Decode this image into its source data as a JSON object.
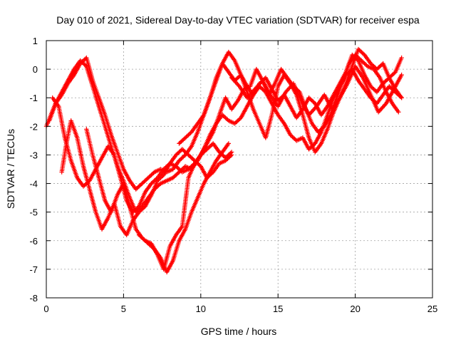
{
  "chart_data": {
    "type": "scatter",
    "title": "Day 010 of 2021, Sidereal Day-to-day VTEC variation (SDTVAR) for receiver espa",
    "xlabel": "GPS time / hours",
    "ylabel": "SDTVAR / TECUs",
    "xlim": [
      0,
      25
    ],
    "ylim": [
      -8,
      1
    ],
    "xticks": [
      0,
      5,
      10,
      15,
      20,
      25
    ],
    "yticks": [
      -8,
      -7,
      -6,
      -5,
      -4,
      -3,
      -2,
      -1,
      0,
      1
    ],
    "grid": true,
    "marker": "+",
    "color": "#ff0000",
    "series": [
      {
        "x": [
          0.0,
          0.3,
          0.6,
          1.0,
          1.4,
          1.8,
          2.2,
          2.6,
          3.0,
          3.4,
          3.8,
          4.2,
          4.6,
          5.0,
          5.4,
          5.8,
          6.2,
          6.6,
          7.0,
          7.4,
          7.8,
          8.2,
          8.6,
          9.0,
          9.4,
          9.8,
          10.2,
          10.6,
          11.0,
          11.4,
          11.8,
          12.2,
          12.6,
          13.0,
          13.4,
          13.8,
          14.2,
          14.6,
          15.0,
          15.4,
          15.8,
          16.2,
          16.6,
          17.0,
          17.4,
          17.8,
          18.2,
          18.6,
          19.0,
          19.4,
          19.8,
          20.2,
          20.6,
          21.0,
          21.4,
          21.8,
          22.2,
          22.6,
          23.0
        ],
        "y": [
          -2.0,
          -1.6,
          -1.2,
          -0.9,
          -0.5,
          -0.2,
          0.2,
          0.4,
          -0.4,
          -1.0,
          -1.6,
          -2.3,
          -2.9,
          -3.5,
          -3.9,
          -4.2,
          -4.0,
          -3.8,
          -3.6,
          -3.5,
          -3.6,
          -3.5,
          -3.2,
          -3.0,
          -2.7,
          -2.2,
          -1.6,
          -1.0,
          -0.3,
          0.2,
          -0.1,
          -0.4,
          -0.2,
          -0.6,
          -0.9,
          -0.5,
          -0.3,
          -0.7,
          -1.1,
          -0.9,
          -1.3,
          -1.7,
          -1.4,
          -1.0,
          -1.2,
          -1.6,
          -1.3,
          -0.9,
          -0.5,
          -0.1,
          0.5,
          0.3,
          -0.2,
          -0.6,
          -0.8,
          -0.5,
          -0.3,
          -0.1,
          0.4
        ]
      },
      {
        "x": [
          0.2,
          0.6,
          1.0,
          1.4,
          1.8,
          2.2,
          2.6,
          3.0,
          3.4,
          3.8,
          4.2,
          4.6,
          5.0,
          5.4,
          5.8,
          6.2,
          6.6,
          7.0,
          7.4,
          7.8,
          8.2,
          8.6,
          9.0,
          9.4,
          9.8,
          10.2,
          10.6,
          11.0,
          11.4,
          11.8,
          12.2,
          12.6,
          13.0,
          13.4,
          13.8,
          14.2,
          14.6,
          15.0,
          15.4,
          15.8,
          16.2,
          16.6,
          17.0,
          17.4,
          17.8,
          18.2,
          18.6,
          19.0,
          19.4,
          19.8,
          20.2,
          20.6,
          21.0,
          21.4,
          21.8,
          22.2,
          22.6,
          23.0
        ],
        "y": [
          -1.8,
          -1.2,
          -0.8,
          -0.4,
          0.0,
          0.3,
          0.1,
          -0.6,
          -1.3,
          -2.0,
          -2.7,
          -3.4,
          -3.9,
          -4.5,
          -5.0,
          -4.8,
          -4.5,
          -4.2,
          -4.0,
          -3.9,
          -3.8,
          -3.6,
          -3.4,
          -3.5,
          -3.2,
          -2.8,
          -2.3,
          -1.9,
          -1.6,
          -1.8,
          -1.9,
          -1.7,
          -1.3,
          -0.9,
          -0.6,
          -0.8,
          -1.2,
          -1.6,
          -1.9,
          -2.3,
          -2.5,
          -2.4,
          -2.8,
          -2.6,
          -2.2,
          -1.6,
          -1.0,
          -0.6,
          -0.2,
          0.0,
          -0.4,
          -0.7,
          -1.0,
          -1.2,
          -0.9,
          -0.6,
          -0.8,
          -1.0
        ]
      },
      {
        "x": [
          0.4,
          0.8,
          1.2,
          1.6,
          2.0,
          2.4,
          2.8,
          3.2,
          3.6,
          4.0,
          4.4,
          4.8,
          5.2,
          5.6,
          6.0,
          6.4,
          6.8,
          7.2,
          7.6,
          8.0,
          8.4,
          8.8,
          9.2,
          9.6,
          10.0,
          10.4,
          10.8,
          11.2,
          11.6,
          12.0
        ],
        "y": [
          -1.0,
          -1.3,
          -2.4,
          -3.2,
          -3.8,
          -4.1,
          -3.9,
          -3.5,
          -3.1,
          -2.7,
          -3.0,
          -3.8,
          -4.6,
          -5.0,
          -4.8,
          -4.3,
          -4.0,
          -3.8,
          -3.5,
          -3.3,
          -3.4,
          -3.6,
          -3.5,
          -3.3,
          -3.0,
          -2.8,
          -2.6,
          -2.9,
          -3.1,
          -2.9
        ]
      },
      {
        "x": [
          1.0,
          1.3,
          1.6,
          2.0,
          2.4,
          2.8,
          3.2,
          3.6,
          4.0,
          4.4,
          4.8,
          5.2,
          5.6,
          6.0,
          6.4,
          6.8,
          7.2,
          7.6,
          8.0,
          8.4,
          8.8,
          9.2,
          9.6,
          10.0,
          10.4,
          10.8,
          11.2,
          11.6,
          12.0
        ],
        "y": [
          -3.6,
          -2.6,
          -1.8,
          -2.4,
          -3.4,
          -4.2,
          -5.0,
          -5.6,
          -5.2,
          -4.7,
          -5.5,
          -5.8,
          -5.3,
          -5.0,
          -4.8,
          -4.4,
          -3.9,
          -3.7,
          -3.3,
          -3.0,
          -2.8,
          -3.0,
          -3.2,
          -3.4,
          -3.8,
          -3.6,
          -3.3,
          -3.2,
          -3.0
        ]
      },
      {
        "x": [
          2.6,
          3.0,
          3.4,
          3.8,
          4.2,
          4.6,
          5.0,
          5.4,
          5.8,
          6.2,
          6.6,
          7.0,
          7.4,
          7.8,
          8.2,
          8.6,
          9.0,
          9.4,
          9.8,
          10.2,
          10.6,
          11.0,
          11.4,
          11.8
        ],
        "y": [
          -2.1,
          -3.0,
          -3.8,
          -4.6,
          -5.0,
          -4.4,
          -4.0,
          -4.8,
          -5.6,
          -5.9,
          -6.1,
          -6.3,
          -6.6,
          -7.1,
          -6.7,
          -6.0,
          -5.6,
          -5.0,
          -4.5,
          -4.0,
          -3.6,
          -3.2,
          -2.9,
          -2.6
        ]
      },
      {
        "x": [
          6.0,
          6.4,
          6.8,
          7.2,
          7.6,
          8.0,
          8.4,
          8.8,
          9.2,
          9.6,
          10.0,
          10.4,
          10.8,
          11.2,
          11.6,
          12.0,
          12.4,
          12.8,
          13.2,
          13.6,
          14.0,
          14.4,
          14.8,
          15.2,
          15.6,
          16.0,
          16.4,
          16.8,
          17.2,
          17.6,
          18.0,
          18.4,
          18.8,
          19.2,
          19.6,
          20.0,
          20.4,
          20.8,
          21.2,
          21.6,
          22.0,
          22.4,
          22.8
        ],
        "y": [
          -5.8,
          -6.0,
          -6.1,
          -6.5,
          -7.0,
          -6.2,
          -5.8,
          -5.5,
          -3.8,
          -3.3,
          -3.0,
          -2.6,
          -2.2,
          -1.6,
          -1.0,
          -1.4,
          -1.1,
          -0.7,
          -0.6,
          0.0,
          -0.4,
          -0.9,
          -0.5,
          0.0,
          -0.3,
          -0.6,
          -0.8,
          -1.4,
          -1.9,
          -2.2,
          -2.0,
          -1.6,
          -1.0,
          -0.4,
          0.2,
          0.5,
          0.3,
          0.1,
          0.0,
          -0.3,
          -0.8,
          -1.2,
          -1.5
        ]
      },
      {
        "x": [
          8.6,
          9.0,
          9.4,
          9.8,
          10.2,
          10.6,
          11.0,
          11.4,
          11.8,
          12.2,
          12.6,
          13.0,
          13.4,
          13.8,
          14.2,
          14.6,
          15.0,
          15.4,
          15.8,
          16.2,
          16.6,
          17.0,
          17.4,
          17.8,
          18.2,
          18.6,
          19.0,
          19.4,
          19.8,
          20.2,
          20.6,
          21.0,
          21.4,
          21.8,
          22.2,
          22.6,
          23.0
        ],
        "y": [
          -2.6,
          -2.4,
          -2.2,
          -1.9,
          -1.6,
          -1.0,
          -0.4,
          0.2,
          0.6,
          0.3,
          -0.2,
          -0.8,
          -1.4,
          -1.9,
          -2.4,
          -1.6,
          -0.6,
          -0.2,
          -0.5,
          -0.9,
          -1.6,
          -2.4,
          -2.9,
          -2.6,
          -2.1,
          -1.5,
          -1.0,
          -0.5,
          0.1,
          0.7,
          0.5,
          0.2,
          0.0,
          0.2,
          -0.3,
          -0.7,
          -1.0
        ]
      },
      {
        "x": [
          12.0,
          12.5,
          13.0,
          13.5,
          14.0,
          14.5,
          15.0,
          15.5,
          16.0,
          16.5,
          17.0,
          17.5,
          18.0,
          18.5,
          19.0,
          19.5,
          20.0,
          20.5,
          21.0,
          21.5,
          22.0,
          22.5,
          23.0
        ],
        "y": [
          -0.3,
          -0.6,
          -1.0,
          -0.7,
          -0.4,
          -0.9,
          -1.3,
          -0.8,
          -0.5,
          -1.1,
          -1.6,
          -1.3,
          -0.9,
          -1.4,
          -1.0,
          -0.5,
          0.1,
          -0.3,
          -0.9,
          -1.5,
          -1.2,
          -0.7,
          -0.2
        ]
      }
    ]
  }
}
